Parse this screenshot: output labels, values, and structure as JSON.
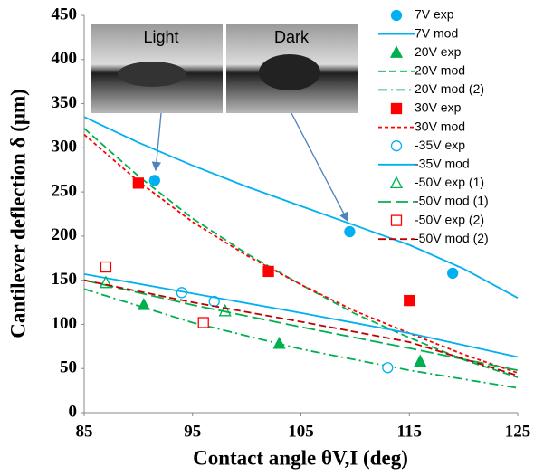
{
  "chart_data": {
    "type": "scatter",
    "y_label": "Cantilever deflection δ (μm)",
    "x_label": "Contact angle θV,I (deg)",
    "annotations": [
      "Light",
      "Dark"
    ],
    "xlim": [
      85,
      125
    ],
    "xticks": [
      85,
      95,
      105,
      115,
      125
    ],
    "ylim": [
      0,
      450
    ],
    "yticks": [
      0,
      50,
      100,
      150,
      200,
      250,
      300,
      350,
      400,
      450
    ],
    "grid": false,
    "legend": "upper right",
    "series": [
      {
        "name": "7V exp",
        "mode": "markers",
        "marker": "circle",
        "filled": true,
        "color": "#00b0f0",
        "x": [
          91.5,
          109.5,
          119
        ],
        "values": [
          263,
          205,
          158
        ]
      },
      {
        "name": "7V mod",
        "mode": "lines",
        "dash": "solid",
        "color": "#00b0f0",
        "x": [
          85,
          90,
          95,
          100,
          105,
          110,
          115,
          120,
          125
        ],
        "values": [
          335,
          306,
          280,
          256,
          234,
          212,
          190,
          163,
          130
        ]
      },
      {
        "name": "20V exp",
        "mode": "markers",
        "marker": "triangle",
        "filled": true,
        "color": "#00b050",
        "x": [
          87,
          90.5,
          103,
          116
        ],
        "values": [
          147,
          122,
          78,
          58
        ]
      },
      {
        "name": "20V mod",
        "mode": "lines",
        "dash": "dashed",
        "color": "#00b050",
        "x": [
          85,
          90,
          95,
          100,
          105,
          110,
          115,
          120,
          125
        ],
        "values": [
          322,
          268,
          220,
          180,
          145,
          112,
          85,
          60,
          40
        ]
      },
      {
        "name": "20V mod (2)",
        "mode": "lines",
        "dash": "dashdot",
        "color": "#00b050",
        "x": [
          85,
          95,
          105,
          115,
          125
        ],
        "values": [
          140,
          102,
          72,
          48,
          28
        ]
      },
      {
        "name": "30V exp",
        "mode": "markers",
        "marker": "square",
        "filled": true,
        "color": "#ff0000",
        "x": [
          90,
          102,
          115
        ],
        "values": [
          260,
          160,
          127
        ]
      },
      {
        "name": "30V mod",
        "mode": "lines",
        "dash": "dotted",
        "color": "#ff0000",
        "x": [
          85,
          90,
          95,
          100,
          105,
          110,
          115,
          120,
          125
        ],
        "values": [
          315,
          262,
          216,
          178,
          145,
          115,
          90,
          66,
          45
        ]
      },
      {
        "name": "-35V exp",
        "mode": "markers",
        "marker": "circle",
        "filled": false,
        "color": "#00b0f0",
        "x": [
          94,
          97,
          113
        ],
        "values": [
          136,
          126,
          51
        ]
      },
      {
        "name": "-35V mod",
        "mode": "lines",
        "dash": "solid",
        "color": "#00b0f0",
        "x": [
          85,
          95,
          105,
          115,
          125
        ],
        "values": [
          157,
          135,
          113,
          90,
          63
        ]
      },
      {
        "name": "-50V exp (1)",
        "mode": "markers",
        "marker": "triangle",
        "filled": false,
        "color": "#00b050",
        "x": [
          87,
          98
        ],
        "values": [
          147,
          115
        ]
      },
      {
        "name": "-50V mod (1)",
        "mode": "lines",
        "dash": "longdash",
        "color": "#00b050",
        "x": [
          85,
          95,
          105,
          115,
          125
        ],
        "values": [
          150,
          122,
          97,
          73,
          48
        ]
      },
      {
        "name": "-50V exp (2)",
        "mode": "markers",
        "marker": "square",
        "filled": false,
        "color": "#ff0000",
        "x": [
          87,
          96
        ],
        "values": [
          165,
          102
        ]
      },
      {
        "name": "-50V mod (2)",
        "mode": "lines",
        "dash": "dashed",
        "color": "#c00000",
        "x": [
          85,
          95,
          105,
          115,
          125
        ],
        "values": [
          150,
          125,
          103,
          80,
          42
        ]
      }
    ]
  }
}
